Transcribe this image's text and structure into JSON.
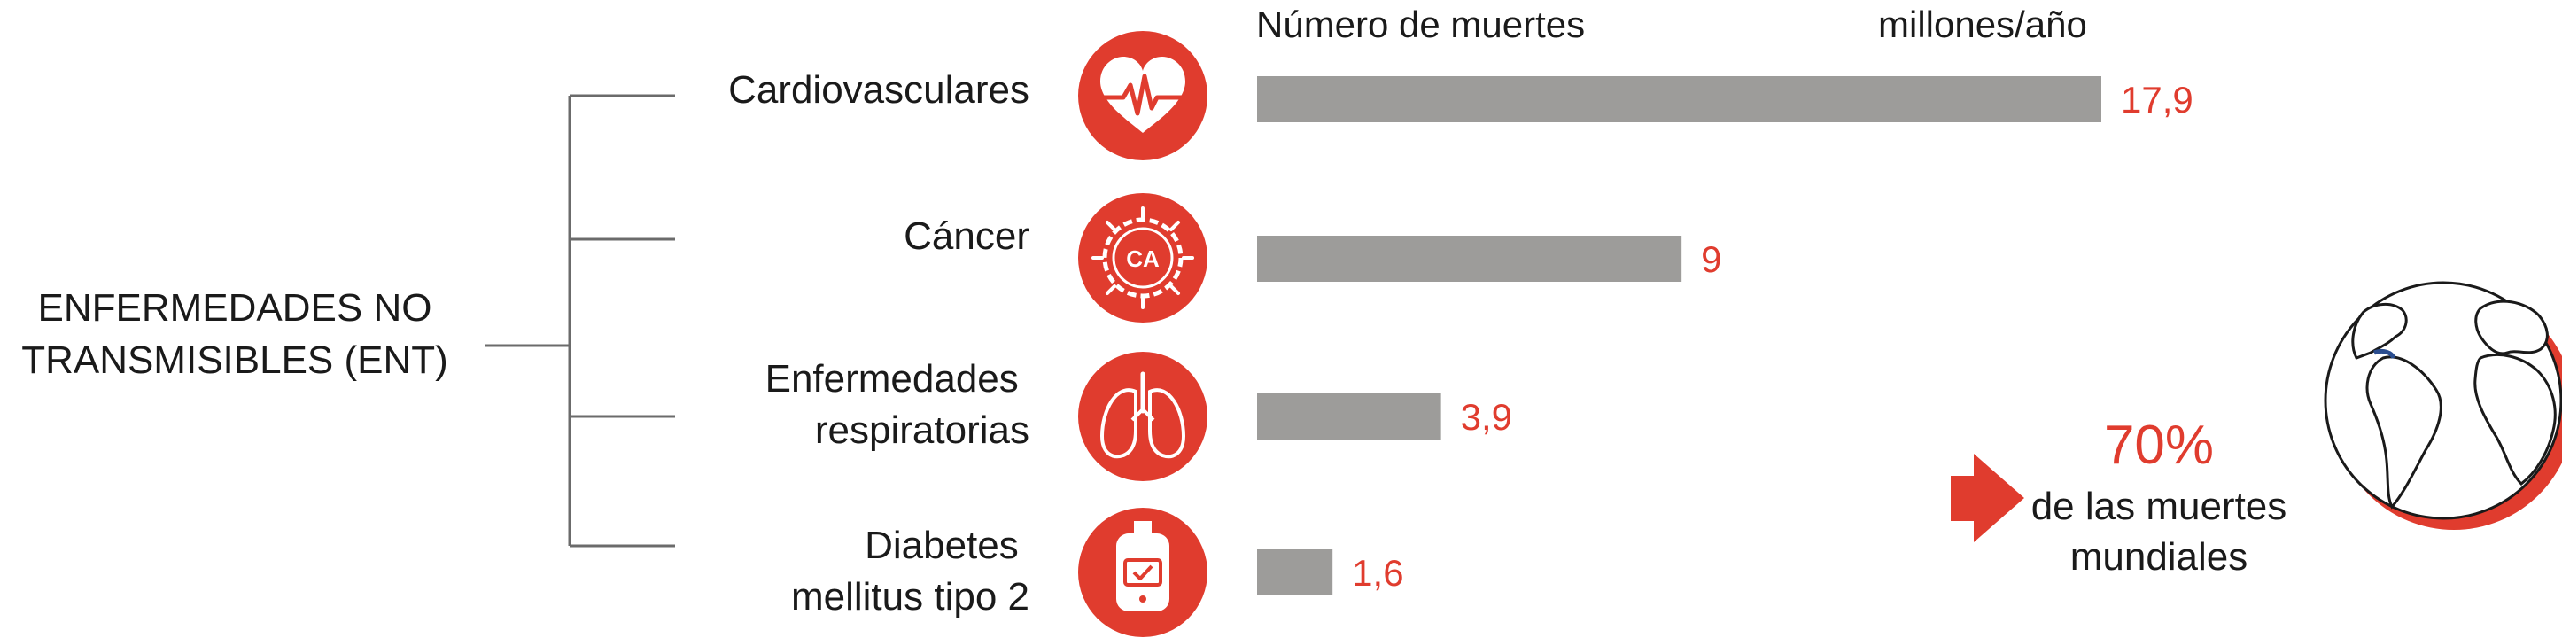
{
  "group_label": {
    "line1": "ENFERMEDADES NO",
    "line2": "TRANSMISIBLES (ENT)"
  },
  "header": {
    "metric": "Número de muertes",
    "unit": "millones/año"
  },
  "chart_data": {
    "type": "bar",
    "orientation": "horizontal",
    "categories": [
      [
        "Cardiovasculares"
      ],
      [
        "Cáncer"
      ],
      [
        "Enfermedades",
        "respiratorias"
      ],
      [
        "Diabetes",
        "mellitus tipo 2"
      ]
    ],
    "values": [
      17.9,
      9,
      3.9,
      1.6
    ],
    "value_labels": [
      "17,9",
      "9",
      "3,9",
      "1,6"
    ],
    "icons": [
      "heart-icon",
      "cancer-icon",
      "lungs-icon",
      "glucose-meter-icon"
    ],
    "xlim": [
      0,
      17.9
    ],
    "grid": false,
    "bar_color": "#9d9c9a",
    "label_color": "#e03c2e"
  },
  "callout": {
    "percent": "70%",
    "line1": "de las muertes",
    "line2": "mundiales"
  },
  "colors": {
    "accent": "#e03c2e",
    "bar": "#9d9c9a",
    "bracket": "#6b6b6b",
    "text": "#1a1a1a"
  }
}
